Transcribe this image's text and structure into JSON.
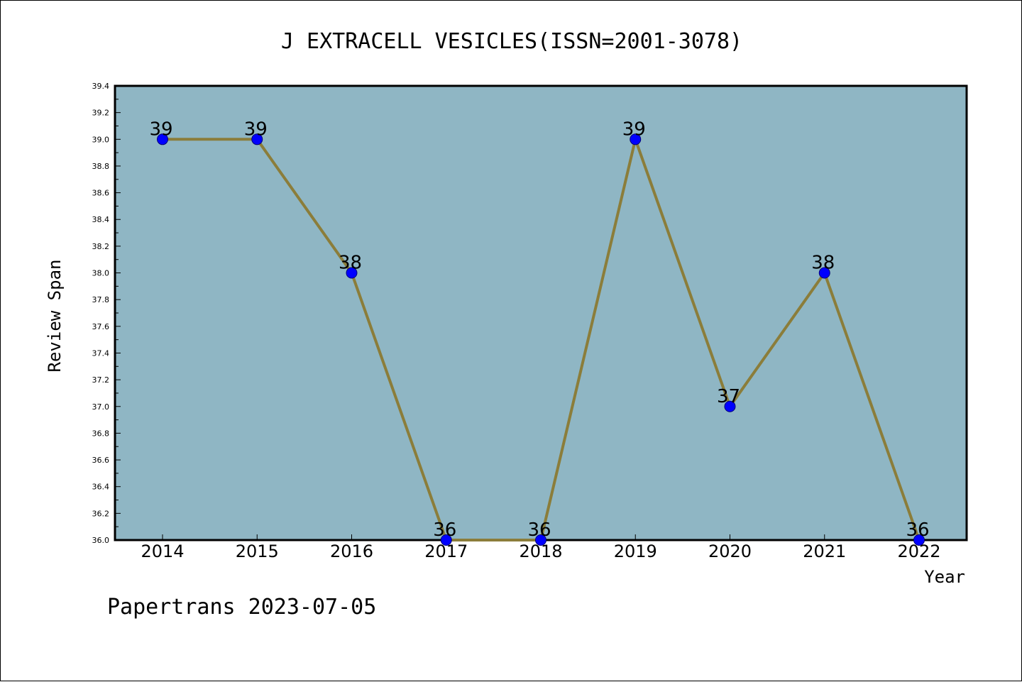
{
  "chart_data": {
    "type": "line",
    "title": "J EXTRACELL VESICLES(ISSN=2001-3078)",
    "xlabel": "Year",
    "ylabel": "Review Span",
    "categories": [
      "2014",
      "2015",
      "2016",
      "2017",
      "2018",
      "2019",
      "2020",
      "2021",
      "2022"
    ],
    "values": [
      39,
      39,
      38,
      36,
      36,
      39,
      37,
      38,
      36
    ],
    "data_labels": [
      "39",
      "39",
      "38",
      "36",
      "36",
      "39",
      "37",
      "38",
      "36"
    ],
    "ylim": [
      36.0,
      39.4
    ],
    "yticks": [
      "36.0",
      "36.2",
      "36.4",
      "36.6",
      "36.8",
      "37.0",
      "37.2",
      "37.4",
      "37.6",
      "37.8",
      "38.0",
      "38.2",
      "38.4",
      "38.6",
      "38.8",
      "39.0",
      "39.2",
      "39.4"
    ],
    "grid": false,
    "colors": {
      "plot_background": "#8FB6C4",
      "line": "#8B7D3A",
      "marker": "#0000FF"
    }
  },
  "footer": "Papertrans 2023-07-05"
}
